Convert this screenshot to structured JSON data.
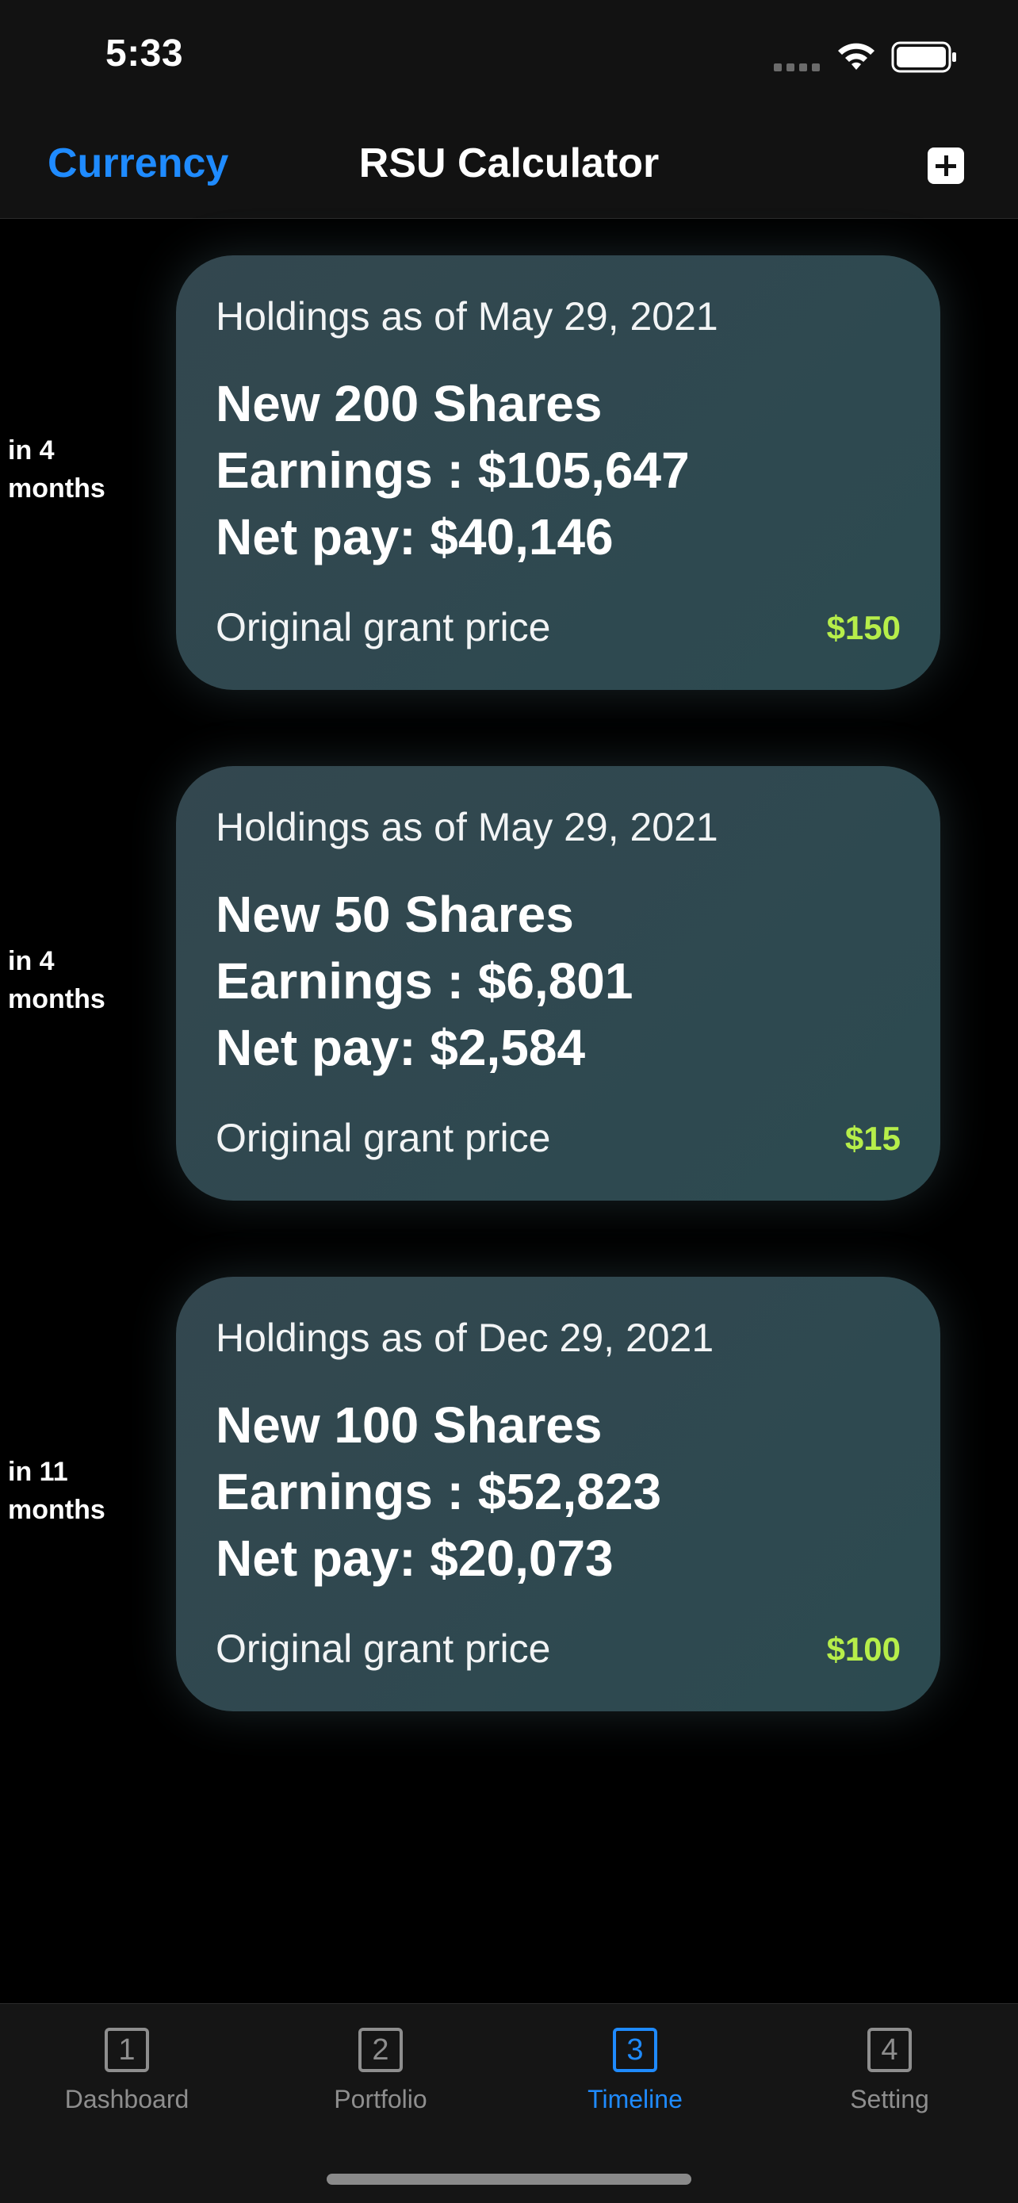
{
  "status_bar": {
    "time": "5:33"
  },
  "nav": {
    "left_label": "Currency",
    "title": "RSU Calculator",
    "add_icon": "plus-square-icon"
  },
  "timeline": [
    {
      "when": "in 4 months",
      "holdings_date": "Holdings as of May 29, 2021",
      "shares": "New 200 Shares",
      "earnings": "Earnings : $105,647",
      "net_pay": "Net pay: $40,146",
      "grant_label": "Original grant price",
      "grant_price": "$150"
    },
    {
      "when": "in 4 months",
      "holdings_date": "Holdings as of May 29, 2021",
      "shares": "New 50 Shares",
      "earnings": "Earnings : $6,801",
      "net_pay": "Net pay: $2,584",
      "grant_label": "Original grant price",
      "grant_price": "$15"
    },
    {
      "when": "in 11 months",
      "holdings_date": "Holdings as of Dec 29, 2021",
      "shares": "New 100 Shares",
      "earnings": "Earnings : $52,823",
      "net_pay": "Net pay: $20,073",
      "grant_label": "Original grant price",
      "grant_price": "$100"
    }
  ],
  "tabs": [
    {
      "icon_text": "1",
      "label": "Dashboard",
      "active": false
    },
    {
      "icon_text": "2",
      "label": "Portfolio",
      "active": false
    },
    {
      "icon_text": "3",
      "label": "Timeline",
      "active": true
    },
    {
      "icon_text": "4",
      "label": "Setting",
      "active": false
    }
  ],
  "colors": {
    "accent": "#1f8bff",
    "grant_price": "#b6ee4a",
    "card": "#2f4850"
  }
}
